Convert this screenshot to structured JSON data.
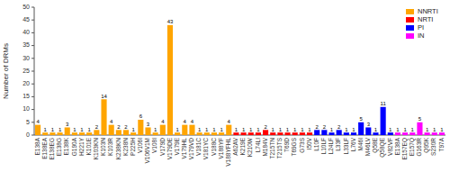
{
  "chart_data": {
    "type": "bar",
    "categories": [
      "E138A",
      "E138EA",
      "E138EG",
      "E138G",
      "E138K",
      "G190A",
      "H221Y",
      "K101E",
      "K103KN",
      "K103N",
      "K103R",
      "K238KN",
      "K238N",
      "P225H",
      "V106I",
      "V106V1M",
      "V108I",
      "V179D",
      "V179DE",
      "V179E",
      "V179HL",
      "V179VD",
      "V181C",
      "V181YC",
      "V188C",
      "V188YF",
      "V188YFHL",
      "A62AV",
      "K219E",
      "K210W",
      "L74LI",
      "M184V",
      "T215TN",
      "T215TS",
      "T69D",
      "T69GS",
      "G73S",
      "I50V",
      "L10F",
      "L10LF",
      "L24LF",
      "L33F",
      "L33LF",
      "L76V",
      "M46I",
      "M46LV",
      "Q58E",
      "Q58QE",
      "V82VF",
      "E138A",
      "E157EQ",
      "E157Q",
      "G163R",
      "Q95K",
      "S230R",
      "T97A"
    ],
    "series": [
      {
        "name": "NNRTI",
        "color": "orange",
        "values": [
          4,
          1,
          1,
          1,
          3,
          1,
          1,
          1,
          2,
          14,
          4,
          2,
          2,
          1,
          6,
          3,
          1,
          4,
          43,
          1,
          4,
          4,
          1,
          1,
          1,
          1,
          4,
          null,
          null,
          null,
          null,
          null,
          null,
          null,
          null,
          null,
          null,
          null,
          null,
          null,
          null,
          null,
          null,
          null,
          null,
          null,
          null,
          null,
          null,
          null,
          null,
          null,
          null,
          null,
          null,
          null
        ]
      },
      {
        "name": "NRTI",
        "color": "red",
        "values": [
          null,
          null,
          null,
          null,
          null,
          null,
          null,
          null,
          null,
          null,
          null,
          null,
          null,
          null,
          null,
          null,
          null,
          null,
          null,
          null,
          null,
          null,
          null,
          null,
          null,
          null,
          null,
          1,
          1,
          1,
          1,
          2,
          1,
          1,
          1,
          1,
          1,
          1,
          null,
          null,
          null,
          null,
          null,
          null,
          null,
          null,
          null,
          null,
          null,
          null,
          null,
          null,
          null,
          null,
          null,
          null
        ]
      },
      {
        "name": "PI",
        "color": "blue",
        "values": [
          null,
          null,
          null,
          null,
          null,
          null,
          null,
          null,
          null,
          null,
          null,
          null,
          null,
          null,
          null,
          null,
          null,
          null,
          null,
          null,
          null,
          null,
          null,
          null,
          null,
          null,
          null,
          null,
          null,
          null,
          null,
          null,
          null,
          null,
          null,
          null,
          null,
          null,
          2,
          2,
          1,
          2,
          1,
          1,
          5,
          3,
          1,
          11,
          1,
          null,
          null,
          null,
          null,
          null,
          null,
          null
        ]
      },
      {
        "name": "IN",
        "color": "magenta",
        "values": [
          null,
          null,
          null,
          null,
          null,
          null,
          null,
          null,
          null,
          null,
          null,
          null,
          null,
          null,
          null,
          null,
          null,
          null,
          null,
          null,
          null,
          null,
          null,
          null,
          null,
          null,
          null,
          null,
          null,
          null,
          null,
          null,
          null,
          null,
          null,
          null,
          null,
          null,
          null,
          null,
          null,
          null,
          null,
          null,
          null,
          null,
          null,
          null,
          null,
          1,
          1,
          1,
          5,
          1,
          1,
          1
        ]
      }
    ],
    "ylabel": "Number of DRMs",
    "ylim": [
      0,
      50
    ],
    "yticks": [
      0,
      5,
      10,
      15,
      20,
      25,
      30,
      35,
      40,
      45,
      50
    ],
    "data_labels": true,
    "legend": "upper right",
    "grid": false
  }
}
